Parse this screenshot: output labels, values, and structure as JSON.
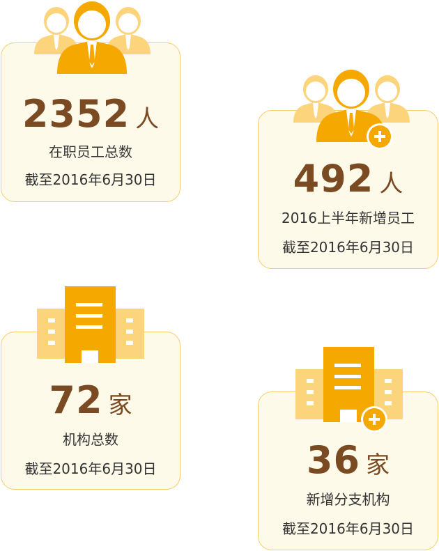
{
  "cards": [
    {
      "number": "2352",
      "unit": "人",
      "label": "在职员工总数",
      "date": "截至2016年6月30日",
      "icon": "people-icon"
    },
    {
      "number": "492",
      "unit": "人",
      "label": "2016上半年新增员工",
      "date": "截至2016年6月30日",
      "icon": "people-add-icon"
    },
    {
      "number": "72",
      "unit": "家",
      "label": "机构总数",
      "date": "截至2016年6月30日",
      "icon": "building-icon"
    },
    {
      "number": "36",
      "unit": "家",
      "label": "新增分支机构",
      "date": "截至2016年6月30日",
      "icon": "building-add-icon"
    }
  ],
  "colors": {
    "accent": "#f5a800",
    "light": "#fcd47c",
    "number": "#7a4a22",
    "card_bg": "#fefaea",
    "border": "#f5cf6e"
  }
}
